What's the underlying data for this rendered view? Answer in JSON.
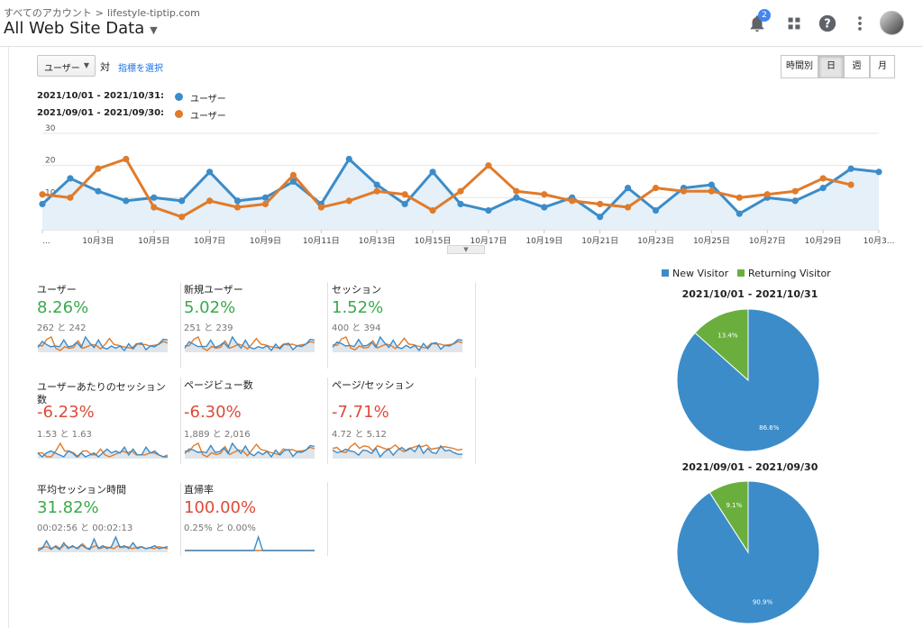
{
  "header": {
    "breadcrumb_root": "すべてのアカウント",
    "breadcrumb_sep": ">",
    "breadcrumb_property": "lifestyle-tiptip.com",
    "view_name": "All Web Site Data",
    "notification_count": "2"
  },
  "controls": {
    "metric": "ユーザー",
    "vs": "対",
    "choose_metric": "指標を選択",
    "granularity": [
      {
        "label": "時間別",
        "active": false
      },
      {
        "label": "日",
        "active": true
      },
      {
        "label": "週",
        "active": false
      },
      {
        "label": "月",
        "active": false
      }
    ]
  },
  "legend": [
    {
      "range": "2021/10/01 - 2021/10/31:",
      "name": "ユーザー",
      "color": "#3c8cc9"
    },
    {
      "range": "2021/09/01 - 2021/09/30:",
      "name": "ユーザー",
      "color": "#e07b2b"
    }
  ],
  "chart_data": [
    {
      "type": "line",
      "ylim": [
        0,
        30
      ],
      "yticks": [
        "30",
        "20",
        "10"
      ],
      "xticks": [
        "...",
        "10月3日",
        "10月5日",
        "10月7日",
        "10月9日",
        "10月11日",
        "10月13日",
        "10月15日",
        "10月17日",
        "10月19日",
        "10月21日",
        "10月23日",
        "10月25日",
        "10月27日",
        "10月29日",
        "10月3..."
      ],
      "series": [
        {
          "name": "ユーザー",
          "period": "2021/10/01 - 2021/10/31",
          "color": "#3c8cc9",
          "area": true,
          "values": [
            8,
            16,
            12,
            9,
            10,
            9,
            18,
            9,
            10,
            15,
            8,
            22,
            14,
            8,
            18,
            8,
            6,
            10,
            7,
            10,
            4,
            13,
            6,
            13,
            14,
            5,
            10,
            9,
            13,
            19,
            18
          ]
        },
        {
          "name": "ユーザー",
          "period": "2021/09/01 - 2021/09/30",
          "color": "#e07b2b",
          "area": false,
          "values": [
            11,
            10,
            19,
            22,
            7,
            4,
            9,
            7,
            8,
            17,
            7,
            9,
            12,
            11,
            6,
            12,
            20,
            12,
            11,
            9,
            8,
            7,
            13,
            12,
            12,
            10,
            11,
            12,
            16,
            14
          ]
        }
      ]
    },
    {
      "type": "pie",
      "title": "2021/10/01 - 2021/10/31",
      "labels": [
        "New Visitor",
        "Returning Visitor"
      ],
      "values": [
        86.6,
        13.4
      ],
      "value_labels": [
        "86.6%",
        "13.4%"
      ],
      "colors": [
        "#3c8cc9",
        "#6aaf3d"
      ]
    },
    {
      "type": "pie",
      "title": "2021/09/01 - 2021/09/30",
      "labels": [
        "New Visitor",
        "Returning Visitor"
      ],
      "values": [
        90.9,
        9.1
      ],
      "value_labels": [
        "90.9%",
        "9.1%"
      ],
      "colors": [
        "#3c8cc9",
        "#6aaf3d"
      ]
    }
  ],
  "pie_legend": [
    {
      "label": "New Visitor",
      "color": "#3c8cc9"
    },
    {
      "label": "Returning Visitor",
      "color": "#6aaf3d"
    }
  ],
  "metrics": [
    {
      "label": "ユーザー",
      "change": "8.26%",
      "status": "up",
      "compare": "262 と 242",
      "spark_cur": [
        8,
        16,
        12,
        9,
        10,
        9,
        18,
        9,
        10,
        15,
        8,
        22,
        14,
        8,
        18,
        8,
        6,
        10,
        7,
        10,
        4,
        13,
        6,
        13,
        14,
        5,
        10,
        9,
        13,
        19,
        18
      ],
      "spark_prev": [
        11,
        10,
        19,
        22,
        7,
        4,
        9,
        7,
        8,
        17,
        7,
        9,
        12,
        11,
        6,
        12,
        20,
        12,
        11,
        9,
        8,
        7,
        13,
        12,
        12,
        10,
        11,
        12,
        16,
        14
      ]
    },
    {
      "label": "新規ユーザー",
      "change": "5.02%",
      "status": "up",
      "compare": "251 と 239",
      "spark_cur": [
        7,
        15,
        12,
        9,
        9,
        9,
        17,
        8,
        10,
        14,
        8,
        21,
        13,
        7,
        17,
        8,
        6,
        9,
        7,
        10,
        4,
        12,
        6,
        12,
        13,
        5,
        10,
        9,
        12,
        18,
        17
      ],
      "spark_prev": [
        10,
        10,
        18,
        21,
        7,
        4,
        9,
        7,
        8,
        16,
        7,
        9,
        12,
        10,
        6,
        12,
        19,
        12,
        11,
        9,
        8,
        7,
        12,
        11,
        12,
        10,
        11,
        12,
        15,
        14
      ]
    },
    {
      "label": "セッション",
      "change": "1.52%",
      "status": "up",
      "compare": "400 と 394",
      "spark_cur": [
        12,
        20,
        18,
        14,
        15,
        13,
        24,
        14,
        15,
        20,
        12,
        28,
        19,
        12,
        23,
        12,
        10,
        15,
        11,
        15,
        7,
        18,
        10,
        18,
        19,
        9,
        15,
        14,
        18,
        24,
        23
      ],
      "spark_prev": [
        16,
        15,
        25,
        28,
        11,
        8,
        14,
        11,
        12,
        22,
        11,
        14,
        17,
        15,
        10,
        17,
        26,
        17,
        16,
        14,
        12,
        11,
        18,
        17,
        17,
        15,
        16,
        17,
        21,
        19
      ]
    },
    {
      "label": "ユーザーあたりのセッション数",
      "change": "-6.23%",
      "status": "down",
      "compare": "1.53 と 1.63",
      "spark_cur": [
        1.5,
        1.3,
        1.5,
        1.6,
        1.5,
        1.4,
        1.3,
        1.6,
        1.5,
        1.3,
        1.5,
        1.3,
        1.4,
        1.5,
        1.3,
        1.5,
        1.7,
        1.5,
        1.6,
        1.5,
        1.8,
        1.4,
        1.7,
        1.4,
        1.4,
        1.8,
        1.5,
        1.6,
        1.4,
        1.3,
        1.3
      ],
      "spark_prev": [
        1.5,
        1.5,
        1.3,
        1.3,
        1.6,
        2.0,
        1.6,
        1.6,
        1.5,
        1.3,
        1.6,
        1.6,
        1.4,
        1.4,
        1.7,
        1.4,
        1.3,
        1.4,
        1.5,
        1.6,
        1.5,
        1.6,
        1.4,
        1.4,
        1.4,
        1.5,
        1.5,
        1.4,
        1.3,
        1.4
      ]
    },
    {
      "label": "ページビュー数",
      "change": "-6.30%",
      "status": "down",
      "compare": "1,889 と 2,016",
      "spark_cur": [
        55,
        75,
        70,
        60,
        62,
        58,
        90,
        60,
        62,
        80,
        55,
        100,
        75,
        55,
        88,
        56,
        45,
        62,
        50,
        64,
        40,
        70,
        48,
        68,
        72,
        42,
        62,
        60,
        70,
        90,
        86
      ],
      "spark_prev": [
        66,
        64,
        90,
        100,
        50,
        40,
        58,
        50,
        55,
        85,
        50,
        60,
        70,
        66,
        45,
        70,
        95,
        72,
        68,
        60,
        55,
        50,
        75,
        70,
        72,
        64,
        66,
        70,
        82,
        76
      ]
    },
    {
      "label": "ページ/セッション",
      "change": "-7.71%",
      "status": "down",
      "compare": "4.72 と 5.12",
      "spark_cur": [
        4.8,
        4.5,
        4.6,
        4.9,
        4.7,
        4.6,
        4.2,
        4.8,
        4.7,
        4.4,
        5.0,
        4.0,
        4.6,
        4.9,
        4.2,
        4.8,
        5.1,
        4.7,
        5.0,
        4.6,
        5.4,
        4.4,
        5.0,
        4.5,
        4.4,
        5.3,
        4.7,
        4.8,
        4.5,
        4.3,
        4.3
      ],
      "spark_prev": [
        5.0,
        5.1,
        4.6,
        4.5,
        5.2,
        5.6,
        5.0,
        5.3,
        5.2,
        4.7,
        5.3,
        5.1,
        4.9,
        5.0,
        5.4,
        4.9,
        4.6,
        5.0,
        5.1,
        5.3,
        5.2,
        5.4,
        4.9,
        5.0,
        5.1,
        5.2,
        5.1,
        5.0,
        4.8,
        4.9
      ]
    },
    {
      "label": "平均セッション時間",
      "change": "31.82%",
      "status": "up",
      "compare": "00:02:56 と 00:02:13",
      "spark_cur": [
        40,
        60,
        140,
        60,
        80,
        50,
        120,
        60,
        90,
        60,
        100,
        70,
        50,
        160,
        60,
        90,
        60,
        80,
        180,
        70,
        90,
        60,
        120,
        60,
        80,
        60,
        70,
        90,
        60,
        70,
        80
      ],
      "spark_prev": [
        60,
        70,
        80,
        50,
        90,
        60,
        100,
        70,
        80,
        60,
        110,
        60,
        70,
        90,
        60,
        80,
        70,
        60,
        90,
        70,
        80,
        60,
        70,
        80,
        60,
        70,
        60,
        80,
        70,
        60
      ]
    },
    {
      "label": "直帰率",
      "change": "100.00%",
      "status": "down",
      "compare": "0.25% と 0.00%",
      "spark_cur": [
        0,
        0,
        0,
        0,
        0,
        0,
        0,
        0,
        0,
        0,
        0,
        0,
        0,
        0,
        0,
        0,
        0,
        7.7,
        0,
        0,
        0,
        0,
        0,
        0,
        0,
        0,
        0,
        0,
        0,
        0,
        0
      ],
      "spark_prev": [
        0,
        0,
        0,
        0,
        0,
        0,
        0,
        0,
        0,
        0,
        0,
        0,
        0,
        0,
        0,
        0,
        0,
        0,
        0,
        0,
        0,
        0,
        0,
        0,
        0,
        0,
        0,
        0,
        0,
        0
      ]
    }
  ]
}
